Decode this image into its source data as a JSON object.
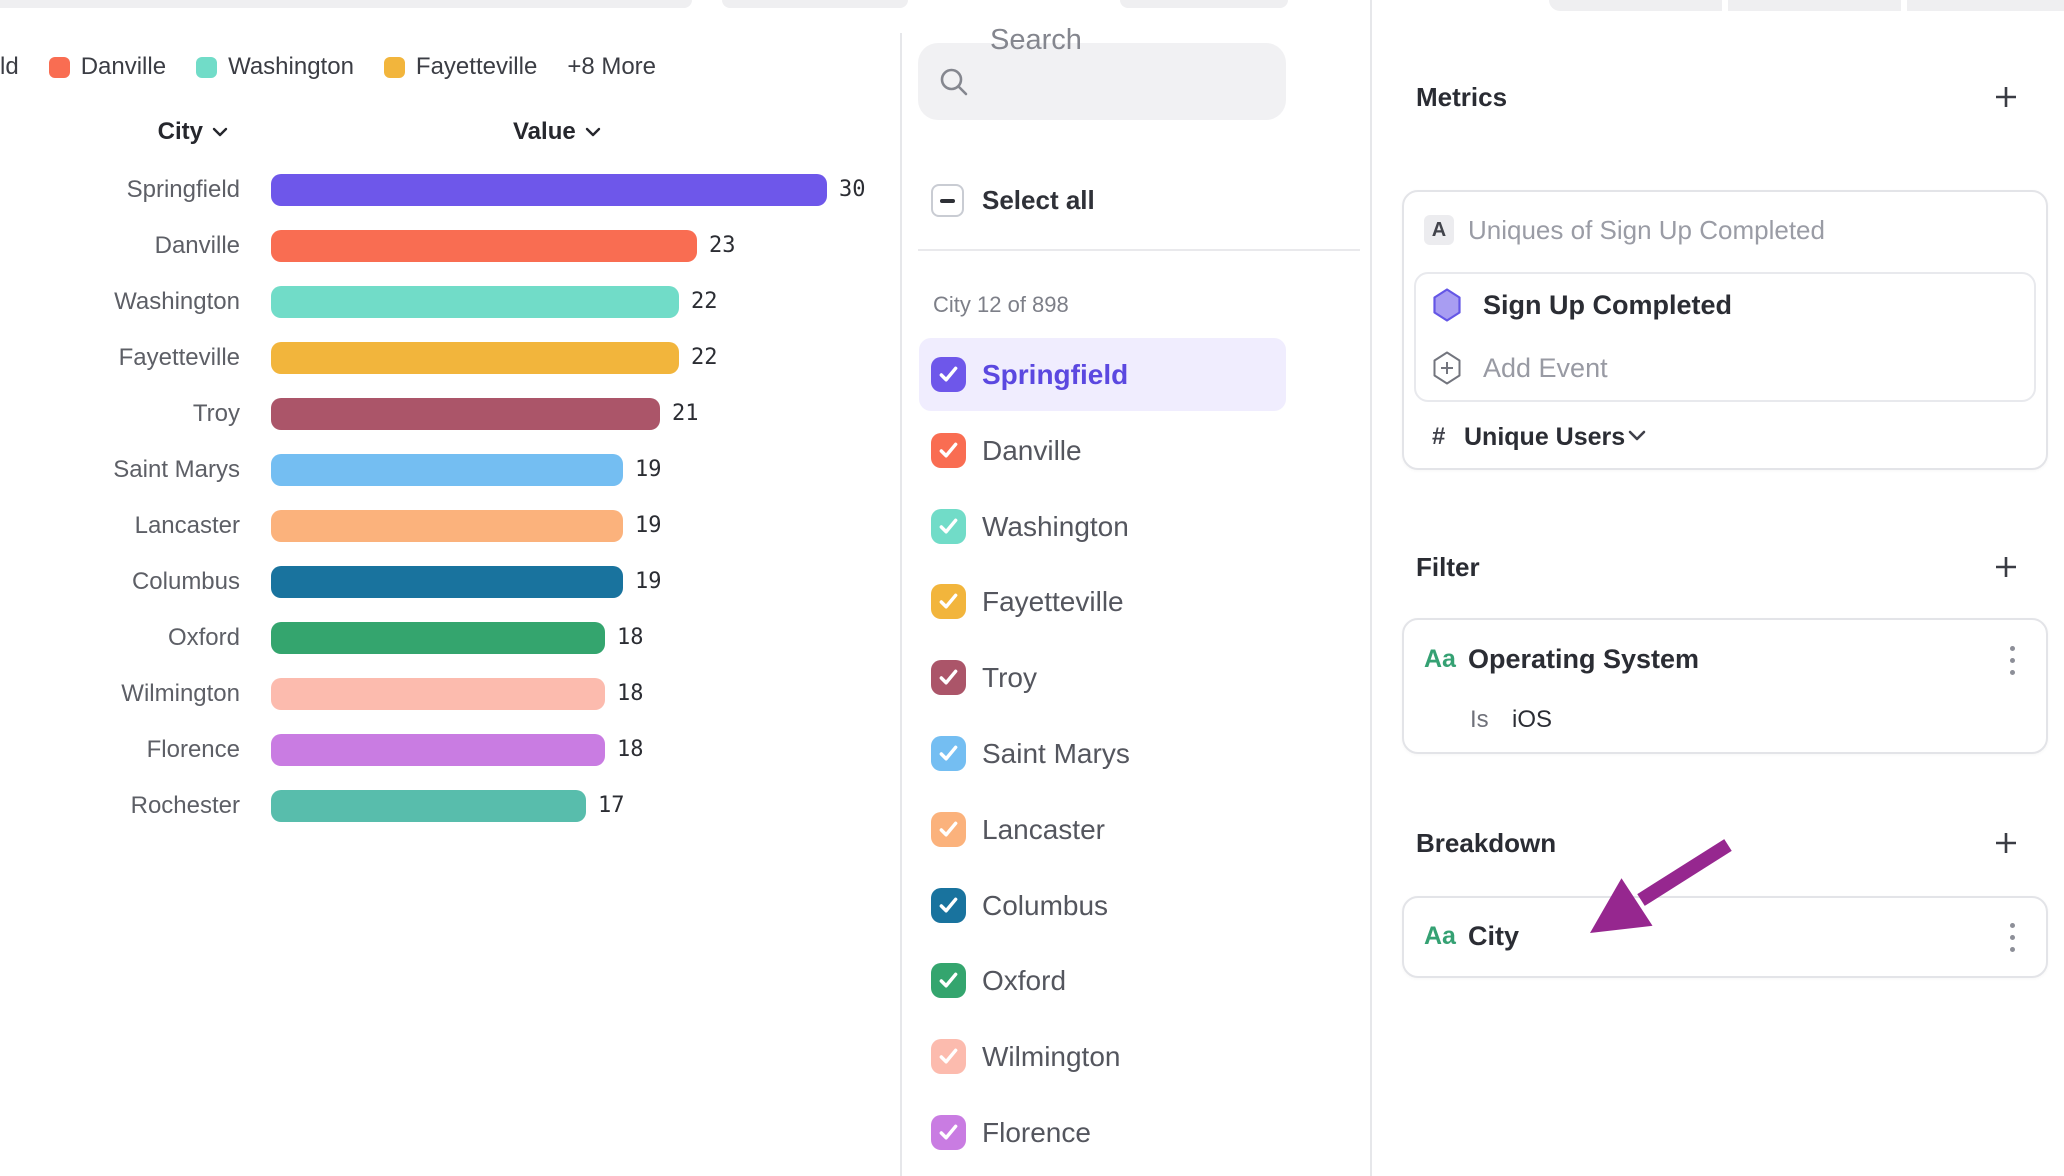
{
  "legend": {
    "clipped_item_label": "ld",
    "items": [
      {
        "label": "Danville",
        "color": "#f96d52"
      },
      {
        "label": "Washington",
        "color": "#71dcc8"
      },
      {
        "label": "Fayetteville",
        "color": "#f2b53c"
      }
    ],
    "more_label": "+8 More"
  },
  "chart_data": {
    "type": "bar",
    "orientation": "horizontal",
    "title": "",
    "column_headers": {
      "category": "City",
      "value": "Value"
    },
    "categories": [
      "Springfield",
      "Danville",
      "Washington",
      "Fayetteville",
      "Troy",
      "Saint Marys",
      "Lancaster",
      "Columbus",
      "Oxford",
      "Wilmington",
      "Florence",
      "Rochester"
    ],
    "values": [
      30,
      23,
      22,
      22,
      21,
      19,
      19,
      19,
      18,
      18,
      18,
      17
    ],
    "bar_colors": [
      "#6e57ea",
      "#f96d52",
      "#71dcc8",
      "#f2b53c",
      "#ab5569",
      "#74bef2",
      "#fbb27c",
      "#19739e",
      "#34a56e",
      "#fcbbae",
      "#c97ce2",
      "#58bdac"
    ],
    "xlim": [
      0,
      30
    ],
    "grid": false,
    "value_labels_shown": true
  },
  "city_panel": {
    "search_placeholder": "Search",
    "select_all_label": "Select all",
    "select_all_state": "indeterminate",
    "count_label": "City 12 of 898",
    "items": [
      {
        "label": "Springfield",
        "color": "#6e57ea",
        "checked": true,
        "highlighted": true
      },
      {
        "label": "Danville",
        "color": "#f96d52",
        "checked": true,
        "highlighted": false
      },
      {
        "label": "Washington",
        "color": "#71dcc8",
        "checked": true,
        "highlighted": false
      },
      {
        "label": "Fayetteville",
        "color": "#f2b53c",
        "checked": true,
        "highlighted": false
      },
      {
        "label": "Troy",
        "color": "#ab5569",
        "checked": true,
        "highlighted": false
      },
      {
        "label": "Saint Marys",
        "color": "#74bef2",
        "checked": true,
        "highlighted": false
      },
      {
        "label": "Lancaster",
        "color": "#fbb27c",
        "checked": true,
        "highlighted": false
      },
      {
        "label": "Columbus",
        "color": "#19739e",
        "checked": true,
        "highlighted": false
      },
      {
        "label": "Oxford",
        "color": "#34a56e",
        "checked": true,
        "highlighted": false
      },
      {
        "label": "Wilmington",
        "color": "#fcbbae",
        "checked": true,
        "highlighted": false
      },
      {
        "label": "Florence",
        "color": "#c97ce2",
        "checked": true,
        "highlighted": false
      }
    ]
  },
  "inspector": {
    "metrics": {
      "heading": "Metrics",
      "row_letter": "A",
      "summary": "Uniques of Sign Up Completed",
      "event_name": "Sign Up Completed",
      "add_event_label": "Add Event",
      "measure_prefix": "#",
      "measure_label": "Unique Users"
    },
    "filter": {
      "heading": "Filter",
      "property_type": "Aa",
      "property": "Operating System",
      "operator": "Is",
      "value": "iOS"
    },
    "breakdown": {
      "heading": "Breakdown",
      "property_type": "Aa",
      "property": "City"
    },
    "annotation_arrow_color": "#96278f"
  }
}
